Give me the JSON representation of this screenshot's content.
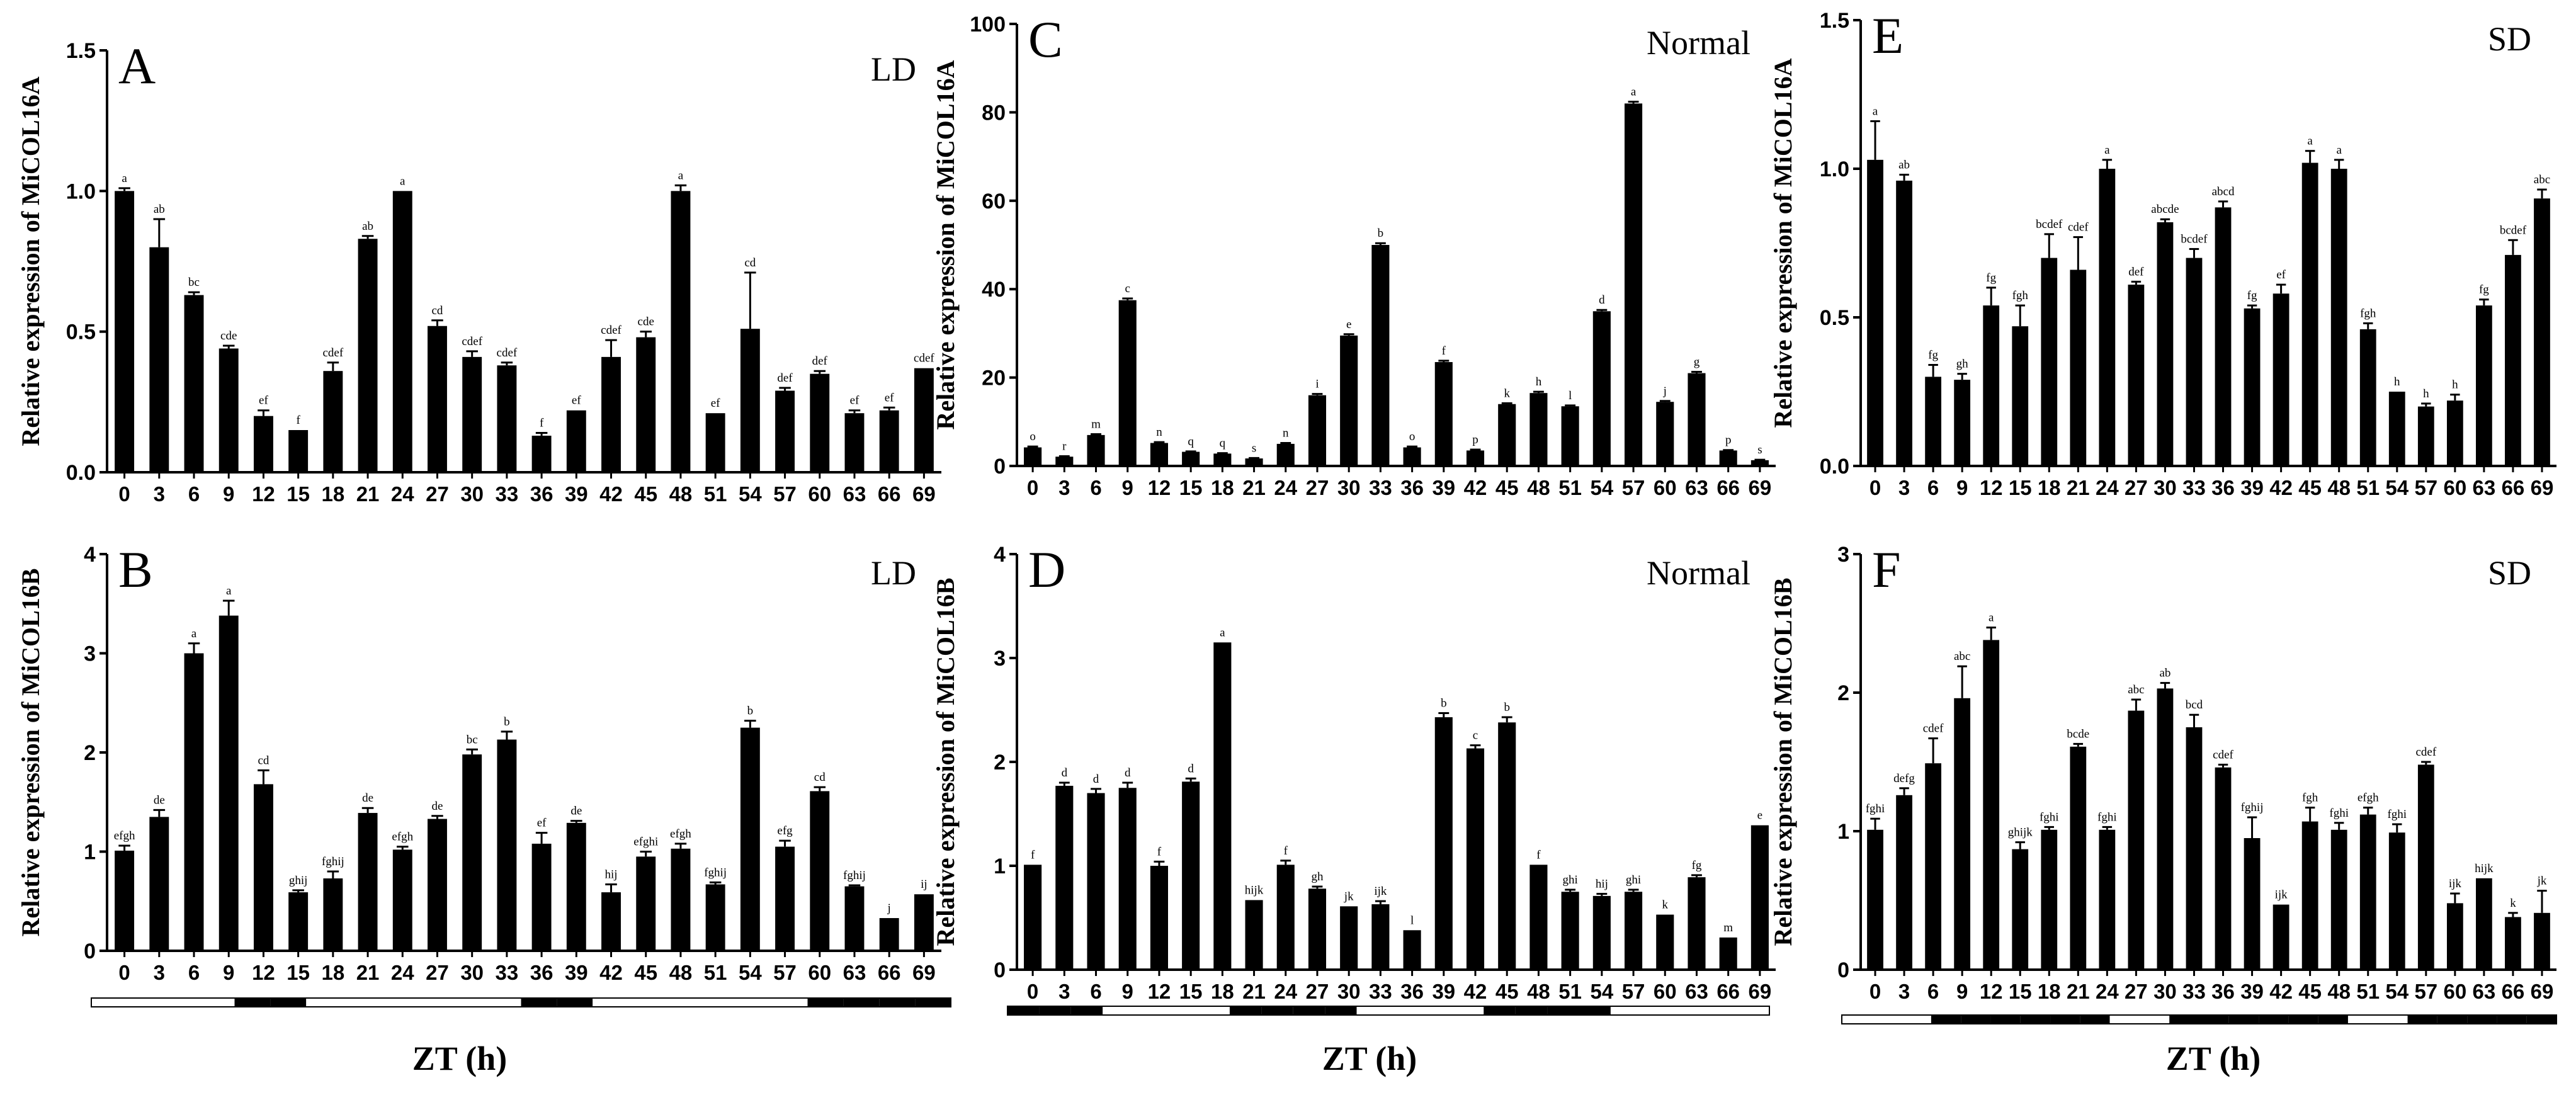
{
  "figure": {
    "xaxis_title": "ZT (h)",
    "colors": {
      "bar": "#000000",
      "axis": "#000000",
      "light": "#ffffff",
      "dark": "#000000"
    }
  },
  "chart_data": [
    {
      "panel": "A",
      "type": "bar",
      "condition": "LD",
      "ylabel": "Relative expression of MiCOL16A",
      "ylim": [
        0,
        1.5
      ],
      "yticks": [
        0,
        0.5,
        1.0,
        1.5
      ],
      "ytick_labels": [
        "0.0",
        "0.5",
        "1.0",
        "1.5"
      ],
      "categories": [
        "0",
        "3",
        "6",
        "9",
        "12",
        "15",
        "18",
        "21",
        "24",
        "27",
        "30",
        "33",
        "36",
        "39",
        "42",
        "45",
        "48",
        "51",
        "54",
        "57",
        "60",
        "63",
        "66",
        "69"
      ],
      "values": [
        1.0,
        0.8,
        0.63,
        0.44,
        0.2,
        0.15,
        0.36,
        0.83,
        1.0,
        0.52,
        0.41,
        0.38,
        0.13,
        0.22,
        0.41,
        0.48,
        1.0,
        0.21,
        0.51,
        0.29,
        0.35,
        0.21,
        0.22,
        0.37
      ],
      "errors": [
        0.01,
        0.1,
        0.01,
        0.01,
        0.02,
        0.0,
        0.03,
        0.01,
        0.0,
        0.02,
        0.02,
        0.01,
        0.01,
        0.0,
        0.06,
        0.02,
        0.02,
        0.0,
        0.2,
        0.01,
        0.01,
        0.01,
        0.01,
        0.0
      ],
      "letters": [
        "a",
        "ab",
        "bc",
        "cde",
        "ef",
        "f",
        "cdef",
        "ab",
        "a",
        "cd",
        "cdef",
        "cdef",
        "f",
        "ef",
        "cdef",
        "cde",
        "a",
        "ef",
        "cd",
        "def",
        "def",
        "ef",
        "ef",
        "cdef"
      ],
      "photoperiod": null
    },
    {
      "panel": "B",
      "type": "bar",
      "condition": "LD",
      "ylabel": "Relative expression of MiCOL16B",
      "ylim": [
        0,
        4
      ],
      "yticks": [
        0,
        1,
        2,
        3,
        4
      ],
      "ytick_labels": [
        "0",
        "1",
        "2",
        "3",
        "4"
      ],
      "categories": [
        "0",
        "3",
        "6",
        "9",
        "12",
        "15",
        "18",
        "21",
        "24",
        "27",
        "30",
        "33",
        "36",
        "39",
        "42",
        "45",
        "48",
        "51",
        "54",
        "57",
        "60",
        "63",
        "66",
        "69"
      ],
      "values": [
        1.01,
        1.35,
        3.0,
        3.38,
        1.68,
        0.59,
        0.73,
        1.39,
        1.02,
        1.33,
        1.98,
        2.13,
        1.08,
        1.29,
        0.59,
        0.95,
        1.03,
        0.67,
        2.25,
        1.05,
        1.61,
        0.65,
        0.33,
        0.57
      ],
      "errors": [
        0.05,
        0.07,
        0.1,
        0.15,
        0.14,
        0.02,
        0.07,
        0.05,
        0.03,
        0.03,
        0.05,
        0.08,
        0.11,
        0.02,
        0.08,
        0.05,
        0.05,
        0.02,
        0.07,
        0.06,
        0.04,
        0.01,
        0.0,
        0.0
      ],
      "letters": [
        "efgh",
        "de",
        "a",
        "a",
        "cd",
        "ghij",
        "fghij",
        "de",
        "efgh",
        "de",
        "bc",
        "b",
        "ef",
        "de",
        "hij",
        "efghi",
        "efgh",
        "fghij",
        "b",
        "efg",
        "cd",
        "fghij",
        "j",
        "ij"
      ],
      "photoperiod": [
        "L",
        "L",
        "L",
        "L",
        "D",
        "D",
        "L",
        "L",
        "L",
        "L",
        "L",
        "L",
        "D",
        "D",
        "L",
        "L",
        "L",
        "L",
        "L",
        "L",
        "D",
        "D",
        "D",
        "D"
      ]
    },
    {
      "panel": "C",
      "type": "bar",
      "condition": "Normal",
      "ylabel": "Relative expression of MiCOL16A",
      "ylim": [
        0,
        100
      ],
      "yticks": [
        0,
        20,
        40,
        60,
        80,
        100
      ],
      "ytick_labels": [
        "0",
        "20",
        "40",
        "60",
        "80",
        "100"
      ],
      "categories": [
        "0",
        "3",
        "6",
        "9",
        "12",
        "15",
        "18",
        "21",
        "24",
        "27",
        "30",
        "33",
        "36",
        "39",
        "42",
        "45",
        "48",
        "51",
        "54",
        "57",
        "60",
        "63",
        "66",
        "69"
      ],
      "values": [
        4.2,
        2.1,
        7.0,
        37.5,
        5.2,
        3.2,
        2.8,
        1.7,
        5.0,
        16.0,
        29.5,
        50.0,
        4.2,
        23.5,
        3.5,
        14.0,
        16.5,
        13.5,
        35.0,
        82.0,
        14.5,
        21.0,
        3.5,
        1.3
      ],
      "errors": [
        0.2,
        0.1,
        0.2,
        0.4,
        0.2,
        0.1,
        0.1,
        0.1,
        0.2,
        0.3,
        0.3,
        0.4,
        0.2,
        0.3,
        0.2,
        0.2,
        0.3,
        0.2,
        0.3,
        0.4,
        0.2,
        0.3,
        0.1,
        0.1
      ],
      "letters": [
        "o",
        "r",
        "m",
        "c",
        "n",
        "q",
        "q",
        "s",
        "n",
        "i",
        "e",
        "b",
        "o",
        "f",
        "p",
        "k",
        "h",
        "l",
        "d",
        "a",
        "j",
        "g",
        "p",
        "s"
      ],
      "photoperiod": null
    },
    {
      "panel": "D",
      "type": "bar",
      "condition": "Normal",
      "ylabel": "Relative expression of MiCOL16B",
      "ylim": [
        0,
        4
      ],
      "yticks": [
        0,
        1,
        2,
        3,
        4
      ],
      "ytick_labels": [
        "0",
        "1",
        "2",
        "3",
        "4"
      ],
      "categories": [
        "0",
        "3",
        "6",
        "9",
        "12",
        "15",
        "18",
        "21",
        "24",
        "27",
        "30",
        "33",
        "36",
        "39",
        "42",
        "45",
        "48",
        "51",
        "54",
        "57",
        "60",
        "63",
        "66",
        "69"
      ],
      "values": [
        1.01,
        1.77,
        1.7,
        1.75,
        1.0,
        1.81,
        3.15,
        0.67,
        1.01,
        0.78,
        0.61,
        0.63,
        0.38,
        2.43,
        2.13,
        2.38,
        1.01,
        0.75,
        0.71,
        0.75,
        0.53,
        0.89,
        0.31,
        1.39
      ],
      "errors": [
        0.0,
        0.03,
        0.04,
        0.05,
        0.04,
        0.03,
        0.0,
        0.0,
        0.04,
        0.02,
        0.0,
        0.03,
        0.0,
        0.04,
        0.03,
        0.05,
        0.0,
        0.02,
        0.02,
        0.02,
        0.0,
        0.02,
        0.0,
        0.0
      ],
      "letters": [
        "f",
        "d",
        "d",
        "d",
        "f",
        "d",
        "a",
        "hijk",
        "f",
        "gh",
        "jk",
        "ijk",
        "l",
        "b",
        "c",
        "b",
        "f",
        "ghi",
        "hij",
        "ghi",
        "k",
        "fg",
        "m",
        "e"
      ],
      "photoperiod": [
        "D",
        "D",
        "D",
        "L",
        "L",
        "L",
        "L",
        "D",
        "D",
        "D",
        "D",
        "L",
        "L",
        "L",
        "L",
        "D",
        "D",
        "D",
        "D",
        "L",
        "L",
        "L",
        "L",
        "L"
      ]
    },
    {
      "panel": "E",
      "type": "bar",
      "condition": "SD",
      "ylabel": "Relative expression of MiCOL16A",
      "ylim": [
        0,
        1.5
      ],
      "yticks": [
        0,
        0.5,
        1.0,
        1.5
      ],
      "ytick_labels": [
        "0.0",
        "0.5",
        "1.0",
        "1.5"
      ],
      "categories": [
        "0",
        "3",
        "6",
        "9",
        "12",
        "15",
        "18",
        "21",
        "24",
        "27",
        "30",
        "33",
        "36",
        "39",
        "42",
        "45",
        "48",
        "51",
        "54",
        "57",
        "60",
        "63",
        "66",
        "69"
      ],
      "values": [
        1.03,
        0.96,
        0.3,
        0.29,
        0.54,
        0.47,
        0.7,
        0.66,
        1.0,
        0.61,
        0.82,
        0.7,
        0.87,
        0.53,
        0.58,
        1.02,
        1.0,
        0.46,
        0.25,
        0.2,
        0.22,
        0.54,
        0.71,
        0.9
      ],
      "errors": [
        0.13,
        0.02,
        0.04,
        0.02,
        0.06,
        0.07,
        0.08,
        0.11,
        0.03,
        0.01,
        0.01,
        0.03,
        0.02,
        0.01,
        0.03,
        0.04,
        0.03,
        0.02,
        0.0,
        0.01,
        0.02,
        0.02,
        0.05,
        0.03
      ],
      "letters": [
        "a",
        "ab",
        "fg",
        "gh",
        "fg",
        "fgh",
        "bcdef",
        "cdef",
        "a",
        "def",
        "abcde",
        "bcdef",
        "abcd",
        "fg",
        "ef",
        "a",
        "a",
        "fgh",
        "h",
        "h",
        "h",
        "fg",
        "bcdef",
        "abc"
      ],
      "photoperiod": null
    },
    {
      "panel": "F",
      "type": "bar",
      "condition": "SD",
      "ylabel": "Relative expression of MiCOL16B",
      "ylim": [
        0,
        3
      ],
      "yticks": [
        0,
        1,
        2,
        3
      ],
      "ytick_labels": [
        "0",
        "1",
        "2",
        "3"
      ],
      "categories": [
        "0",
        "3",
        "6",
        "9",
        "12",
        "15",
        "18",
        "21",
        "24",
        "27",
        "30",
        "33",
        "36",
        "39",
        "42",
        "45",
        "48",
        "51",
        "54",
        "57",
        "60",
        "63",
        "66",
        "69"
      ],
      "values": [
        1.01,
        1.26,
        1.49,
        1.96,
        2.38,
        0.87,
        1.01,
        1.61,
        1.01,
        1.87,
        2.03,
        1.75,
        1.46,
        0.95,
        0.47,
        1.07,
        1.01,
        1.12,
        0.99,
        1.48,
        0.48,
        0.66,
        0.38,
        0.41
      ],
      "errors": [
        0.08,
        0.05,
        0.18,
        0.23,
        0.09,
        0.05,
        0.02,
        0.02,
        0.02,
        0.08,
        0.04,
        0.09,
        0.02,
        0.15,
        0.0,
        0.1,
        0.05,
        0.05,
        0.06,
        0.02,
        0.07,
        0.0,
        0.03,
        0.16
      ],
      "letters": [
        "fghi",
        "defg",
        "cdef",
        "abc",
        "a",
        "ghijk",
        "fghi",
        "bcde",
        "fghi",
        "abc",
        "ab",
        "bcd",
        "cdef",
        "fghij",
        "ijk",
        "fgh",
        "fghi",
        "efgh",
        "fghi",
        "cdef",
        "ijk",
        "hijk",
        "k",
        "jk"
      ],
      "photoperiod": [
        "L",
        "L",
        "L",
        "D",
        "D",
        "D",
        "D",
        "D",
        "D",
        "L",
        "L",
        "D",
        "D",
        "D",
        "D",
        "D",
        "D",
        "L",
        "L",
        "D",
        "D",
        "D",
        "D",
        "D"
      ]
    }
  ]
}
